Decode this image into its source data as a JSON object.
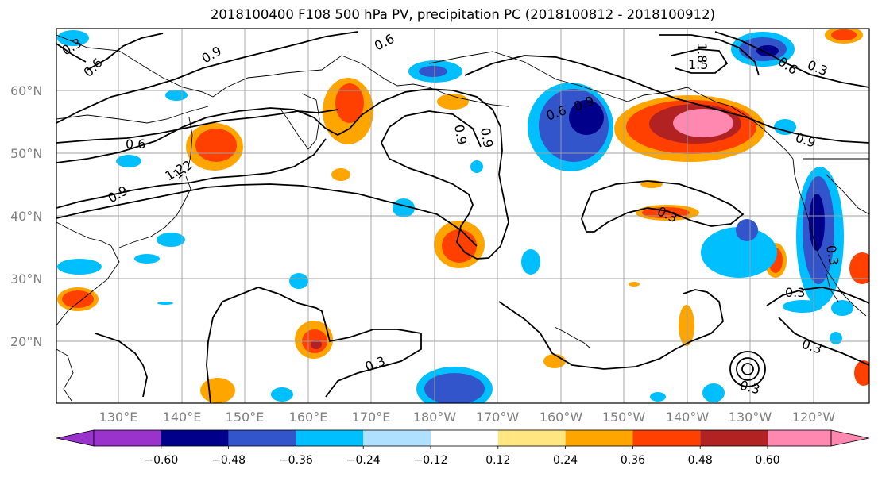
{
  "title": "2018100400 F108 500 hPa PV, precipitation PC (2018100812 - 2018100912)",
  "map": {
    "lat_labels": [
      "60°N",
      "50°N",
      "40°N",
      "30°N",
      "20°N"
    ],
    "lon_labels": [
      "130°E",
      "140°E",
      "150°E",
      "160°E",
      "170°E",
      "180°W",
      "170°W",
      "160°W",
      "150°W",
      "140°W",
      "130°W",
      "120°W"
    ],
    "contour_labels": [
      "0.3",
      "0.6",
      "0.9",
      "0.6",
      "0.9",
      "1.2",
      "0.9",
      "0.6",
      "1.5",
      "1.8",
      "0.3",
      "0.6",
      "0.9",
      "0.3",
      "0.3",
      "0.3",
      "0.3",
      "0.3",
      "0.9",
      "0.3",
      "0.6",
      "0.9",
      "1.2"
    ]
  },
  "colorbar": {
    "colors": [
      "#9933cc",
      "#00008b",
      "#3355cc",
      "#00bfff",
      "#b0e0ff",
      "#ffffff",
      "#ffe680",
      "#ffa500",
      "#ff4000",
      "#b22222",
      "#ff88b0"
    ],
    "tick_labels": [
      "−0.60",
      "−0.48",
      "−0.36",
      "−0.24",
      "−0.12",
      "0.12",
      "0.24",
      "0.36",
      "0.48",
      "0.60"
    ]
  }
}
